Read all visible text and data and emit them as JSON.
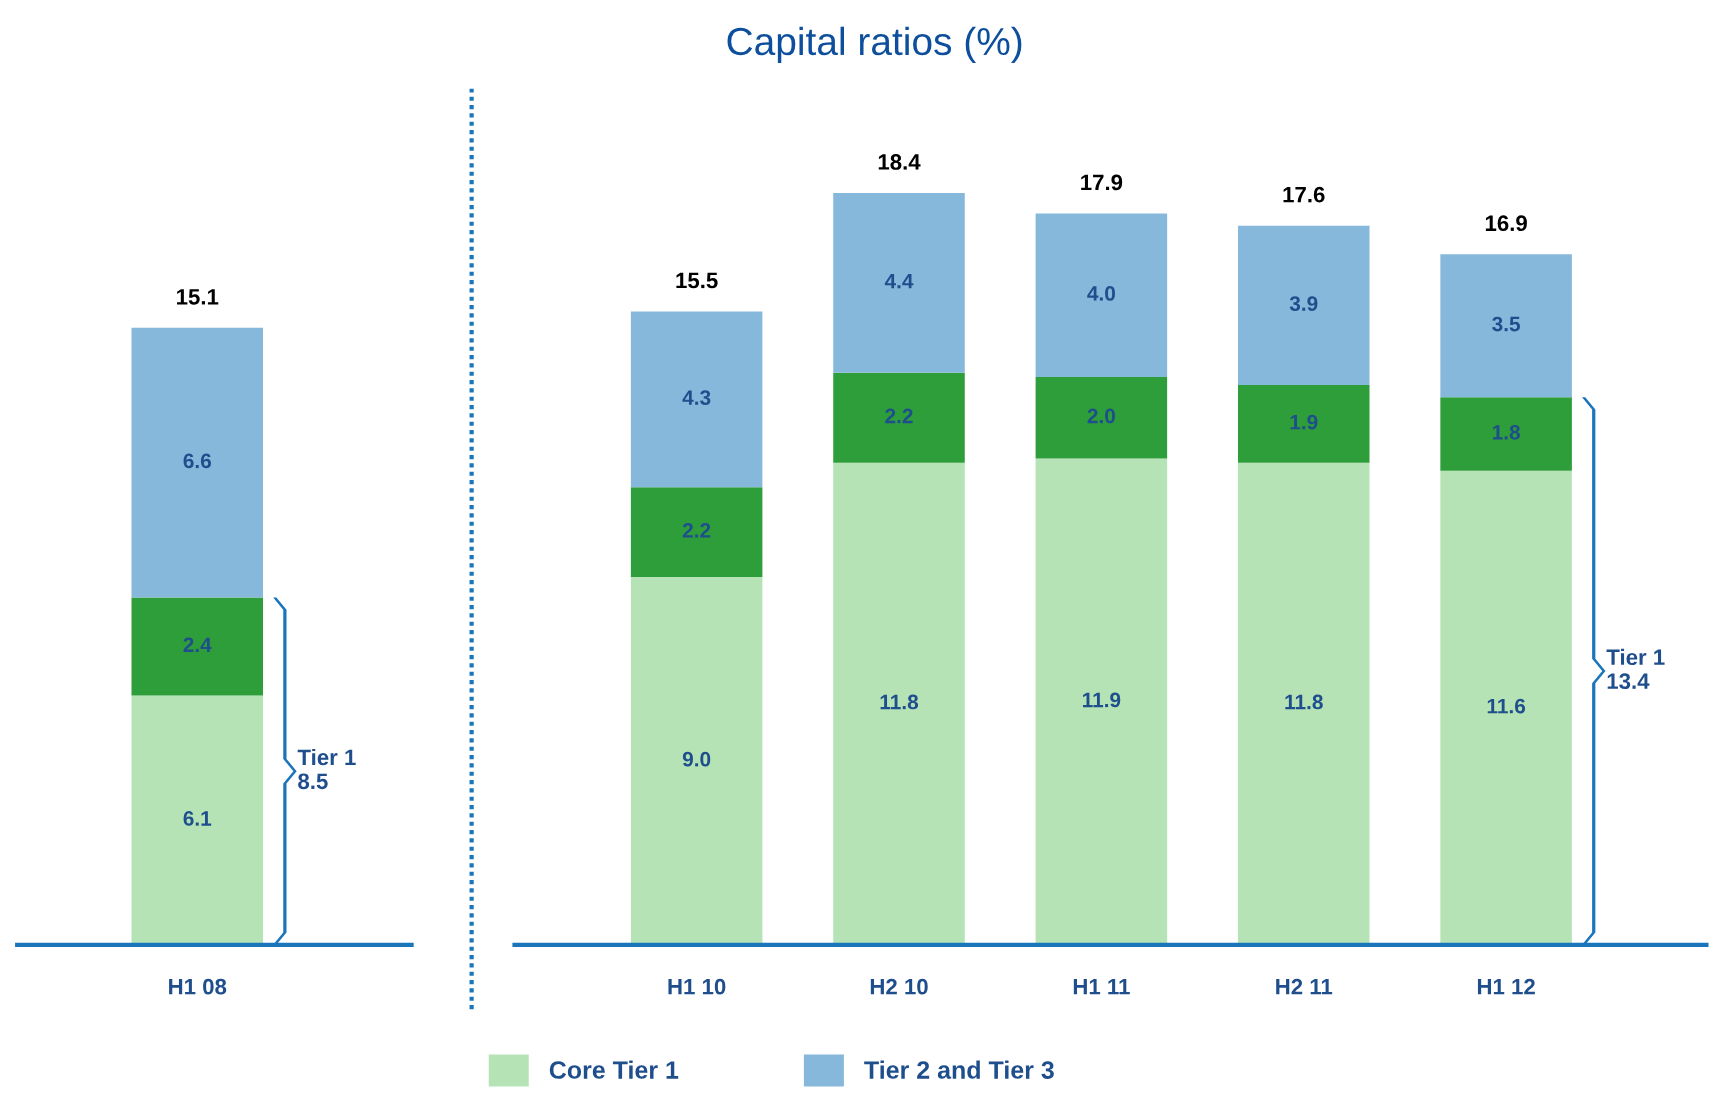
{
  "chart_data": [
    {
      "type": "bar",
      "stacked": true,
      "categories": [
        "H1 08"
      ],
      "legend": "bottom",
      "tick_labels": "x",
      "series": [
        {
          "name": "Core Tier 1",
          "color": "#b5e3b5",
          "values": [
            6.1
          ],
          "value_labels": [
            "6.1"
          ]
        },
        {
          "color": "#2e9e3a",
          "values": [
            2.4
          ],
          "value_labels": [
            "2.4"
          ]
        },
        {
          "name": "Tier 2 and Tier 3",
          "color": "#86b8dc",
          "values": [
            6.6
          ],
          "value_labels": [
            "6.6"
          ]
        }
      ],
      "totals": [
        "15.1"
      ],
      "annotations": [
        "Tier 1\n8.5"
      ]
    },
    {
      "type": "bar",
      "stacked": true,
      "title": "Capital ratios (%)",
      "categories": [
        "H1 10",
        "H2 10",
        "H1 11",
        "H2 11",
        "H1 12"
      ],
      "tick_labels": "x",
      "series": [
        {
          "name": "Core Tier 1",
          "color": "#b5e3b5",
          "values": [
            9.0,
            11.8,
            11.9,
            11.8,
            11.6
          ],
          "value_labels": [
            "9.0",
            "11.8",
            "11.9",
            "11.8",
            "11.6"
          ]
        },
        {
          "color": "#2e9e3a",
          "values": [
            2.2,
            2.2,
            2.0,
            1.9,
            1.8
          ],
          "value_labels": [
            "2.2",
            "2.2",
            "2.0",
            "1.9",
            "1.8"
          ]
        },
        {
          "name": "Tier 2 and Tier 3",
          "color": "#86b8dc",
          "values": [
            4.3,
            4.4,
            4.0,
            3.9,
            3.5
          ],
          "value_labels": [
            "4.3",
            "4.4",
            "4.0",
            "3.9",
            "3.5"
          ]
        }
      ],
      "totals": [
        "15.5",
        "18.4",
        "17.9",
        "17.6",
        "16.9"
      ],
      "annotations": [
        "Tier 1\n13.4"
      ]
    }
  ]
}
